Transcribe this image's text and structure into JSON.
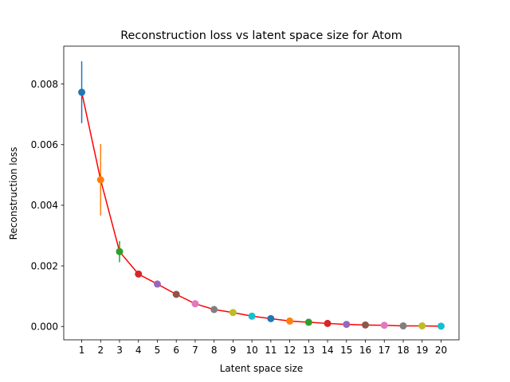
{
  "chart_data": {
    "type": "line",
    "title": "Reconstruction loss vs latent space size for Atom",
    "xlabel": "Latent space size",
    "ylabel": "Reconstruction loss",
    "xlim": [
      0.05,
      20.95
    ],
    "ylim": [
      -0.00044,
      0.00925
    ],
    "grid": false,
    "legend": "none",
    "line_color": "#ff0000",
    "x": [
      1,
      2,
      3,
      4,
      5,
      6,
      7,
      8,
      9,
      10,
      11,
      12,
      13,
      14,
      15,
      16,
      17,
      18,
      19,
      20
    ],
    "y": [
      0.00773,
      0.00484,
      0.00247,
      0.00173,
      0.0014,
      0.00106,
      0.00075,
      0.00056,
      0.00046,
      0.00034,
      0.00026,
      0.00018,
      0.00014,
      0.0001,
      7e-05,
      5e-05,
      4e-05,
      2e-05,
      2e-05,
      1e-05
    ],
    "yerr": [
      0.00102,
      0.00118,
      0.00035,
      3e-05,
      2e-05,
      2e-05,
      2e-05,
      2e-05,
      2e-05,
      2e-05,
      2e-05,
      2e-05,
      2e-05,
      1e-05,
      1e-05,
      1e-05,
      1e-05,
      1e-05,
      1e-05,
      1e-05
    ],
    "point_colors": [
      "#1f77b4",
      "#ff7f0e",
      "#2ca02c",
      "#d62728",
      "#9467bd",
      "#8c564b",
      "#e377c2",
      "#7f7f7f",
      "#bcbd22",
      "#17becf",
      "#1f77b4",
      "#ff7f0e",
      "#2ca02c",
      "#d62728",
      "#9467bd",
      "#8c564b",
      "#e377c2",
      "#7f7f7f",
      "#bcbd22",
      "#17becf"
    ],
    "xticks": [
      "1",
      "2",
      "3",
      "4",
      "5",
      "6",
      "7",
      "8",
      "9",
      "10",
      "11",
      "12",
      "13",
      "14",
      "15",
      "16",
      "17",
      "18",
      "19",
      "20"
    ],
    "yticks": [
      0.0,
      0.002,
      0.004,
      0.006,
      0.008
    ],
    "ytick_labels": [
      "0.000",
      "0.002",
      "0.004",
      "0.006",
      "0.008"
    ]
  }
}
